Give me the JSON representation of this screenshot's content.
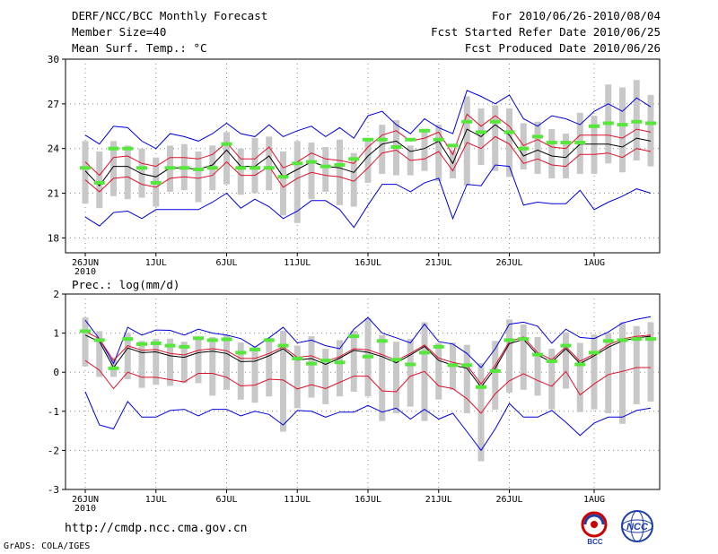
{
  "header": {
    "title": "DERF/NCC/BCC Monthly Forecast",
    "member_size": "Member Size=40",
    "variable": "Mean Surf. Temp.: °C",
    "period": "For 2010/06/26-2010/08/04",
    "refer_date": "Fcst Started Refer Date 2010/06/25",
    "produced_date": "Fcst Produced Date 2010/06/26"
  },
  "footer": {
    "url": "http://cmdp.ncc.cma.gov.cn",
    "grads": "GrADS: COLA/IGES",
    "logo_left_text": "BCC",
    "logo_right_text": "NCC"
  },
  "colors": {
    "box": "#c8c8c8",
    "mean": "#000000",
    "inner": "#e0102a",
    "outer": "#0000e0",
    "marker": "#55e83a"
  },
  "chart_data": [
    {
      "type": "line",
      "title": "Mean Surf. Temp.: °C",
      "x_ticks": [
        "26JUN",
        "1JUL",
        "6JUL",
        "11JUL",
        "16JUL",
        "21JUL",
        "26JUL",
        "1AUG"
      ],
      "x_tick_days": [
        0,
        5,
        10,
        15,
        20,
        25,
        30,
        36
      ],
      "x_year": "2010",
      "y_ticks": [
        "18",
        "21",
        "24",
        "27",
        "30"
      ],
      "ylim": [
        17,
        30
      ],
      "days": [
        0,
        1,
        2,
        3,
        4,
        5,
        6,
        7,
        8,
        9,
        10,
        11,
        12,
        13,
        14,
        15,
        16,
        17,
        18,
        19,
        20,
        21,
        22,
        23,
        24,
        25,
        26,
        27,
        28,
        29,
        30,
        31,
        32,
        33,
        34,
        35,
        36,
        37,
        38,
        39,
        40
      ],
      "series": [
        {
          "name": "mean",
          "values": [
            22.5,
            21.5,
            22.8,
            22.8,
            22.3,
            22.1,
            22.7,
            22.7,
            22.6,
            22.9,
            23.9,
            22.8,
            22.8,
            23.5,
            22.1,
            22.6,
            23.1,
            22.8,
            22.7,
            22.4,
            23.5,
            24.3,
            24.5,
            23.8,
            24.0,
            24.5,
            23.0,
            25.3,
            24.8,
            25.6,
            24.9,
            23.5,
            23.9,
            23.5,
            23.4,
            24.3,
            24.3,
            24.3,
            24.1,
            24.7,
            24.5
          ]
        },
        {
          "name": "upper_red",
          "values": [
            23.1,
            22.2,
            23.4,
            23.5,
            23.0,
            22.8,
            23.4,
            23.4,
            23.3,
            23.6,
            24.4,
            23.3,
            23.3,
            24.1,
            22.7,
            23.1,
            23.7,
            23.3,
            23.2,
            23.0,
            24.1,
            24.9,
            25.2,
            24.5,
            24.7,
            25.1,
            23.6,
            26.3,
            25.5,
            26.2,
            25.5,
            24.2,
            24.6,
            24.1,
            24.0,
            24.9,
            24.9,
            24.9,
            24.7,
            25.3,
            25.1
          ]
        },
        {
          "name": "lower_red",
          "values": [
            21.9,
            21.1,
            22.0,
            22.1,
            21.6,
            21.4,
            22.0,
            22.1,
            22.0,
            22.2,
            23.1,
            22.2,
            22.2,
            22.8,
            21.4,
            22.0,
            22.4,
            22.2,
            22.1,
            21.8,
            22.7,
            23.7,
            23.9,
            23.2,
            23.3,
            23.8,
            22.5,
            24.4,
            24.0,
            24.8,
            24.3,
            23.0,
            23.3,
            22.9,
            22.8,
            23.6,
            23.6,
            23.7,
            23.4,
            24.0,
            23.8
          ]
        },
        {
          "name": "upper_blue",
          "values": [
            24.9,
            24.3,
            25.5,
            25.4,
            24.5,
            24.0,
            25.0,
            24.8,
            24.5,
            25.0,
            25.7,
            25.0,
            24.8,
            25.6,
            24.8,
            25.2,
            25.5,
            24.8,
            25.4,
            24.7,
            26.2,
            26.5,
            25.6,
            25.0,
            26.0,
            25.4,
            25.0,
            27.9,
            27.5,
            27.0,
            27.6,
            26.0,
            25.5,
            26.2,
            26.0,
            25.6,
            26.5,
            27.0,
            26.5,
            27.4,
            26.8
          ]
        },
        {
          "name": "lower_blue",
          "values": [
            19.4,
            18.8,
            19.7,
            19.8,
            19.3,
            19.9,
            19.9,
            19.9,
            19.9,
            20.4,
            21.0,
            20.0,
            20.6,
            20.1,
            19.3,
            19.8,
            20.5,
            20.5,
            19.9,
            18.7,
            20.2,
            21.6,
            21.6,
            21.1,
            21.7,
            22.0,
            19.3,
            21.6,
            21.5,
            22.9,
            22.8,
            20.2,
            20.4,
            20.3,
            20.3,
            21.2,
            19.9,
            20.4,
            20.8,
            21.3,
            21.0
          ]
        },
        {
          "name": "box_high",
          "values": [
            24.5,
            23.8,
            24.5,
            24.2,
            24.0,
            23.4,
            24.2,
            24.3,
            23.8,
            24.2,
            25.1,
            24.0,
            24.7,
            24.8,
            23.8,
            24.5,
            24.4,
            24.1,
            24.6,
            23.7,
            24.7,
            25.6,
            25.9,
            24.2,
            25.3,
            25.6,
            23.9,
            27.5,
            26.7,
            26.9,
            26.7,
            25.7,
            25.8,
            25.3,
            25.0,
            26.4,
            26.2,
            28.3,
            28.1,
            28.6,
            27.6
          ]
        },
        {
          "name": "box_low",
          "values": [
            20.3,
            20.0,
            20.8,
            20.6,
            20.7,
            20.1,
            21.1,
            21.2,
            20.4,
            21.2,
            21.6,
            20.9,
            21.0,
            21.2,
            19.5,
            19.0,
            20.6,
            21.1,
            20.2,
            20.1,
            21.7,
            22.3,
            22.2,
            22.2,
            22.5,
            21.8,
            22.0,
            21.5,
            22.9,
            22.5,
            22.1,
            22.6,
            22.3,
            22.0,
            22.0,
            22.3,
            22.3,
            23.0,
            22.4,
            23.2,
            22.8
          ]
        },
        {
          "name": "green_marker",
          "values": [
            22.7,
            21.7,
            24.0,
            24.0,
            22.7,
            21.7,
            22.7,
            22.7,
            22.6,
            22.7,
            24.3,
            22.7,
            22.7,
            22.7,
            22.1,
            23.0,
            23.1,
            22.8,
            22.9,
            23.3,
            24.6,
            24.6,
            24.1,
            24.6,
            25.2,
            24.6,
            24.2,
            25.8,
            25.1,
            25.8,
            25.1,
            24.0,
            24.8,
            24.4,
            24.4,
            24.4,
            25.5,
            25.7,
            25.6,
            25.8,
            25.7
          ]
        }
      ]
    },
    {
      "type": "line",
      "title": "Prec.: log(mm/d)",
      "x_ticks": [
        "26JUN",
        "1JUL",
        "6JUL",
        "11JUL",
        "16JUL",
        "21JUL",
        "26JUL",
        "1AUG"
      ],
      "x_tick_days": [
        0,
        5,
        10,
        15,
        20,
        25,
        30,
        36
      ],
      "x_year": "2010",
      "y_ticks": [
        "-3",
        "-2",
        "-1",
        "0",
        "1",
        "2"
      ],
      "ylim": [
        -3,
        2
      ],
      "days": [
        0,
        1,
        2,
        3,
        4,
        5,
        6,
        7,
        8,
        9,
        10,
        11,
        12,
        13,
        14,
        15,
        16,
        17,
        18,
        19,
        20,
        21,
        22,
        23,
        24,
        25,
        26,
        27,
        28,
        29,
        30,
        31,
        32,
        33,
        34,
        35,
        36,
        37,
        38,
        39,
        40
      ],
      "series": [
        {
          "name": "mean",
          "values": [
            0.95,
            0.78,
            0.12,
            0.62,
            0.5,
            0.52,
            0.42,
            0.38,
            0.5,
            0.54,
            0.48,
            0.27,
            0.28,
            0.42,
            0.6,
            0.31,
            0.35,
            0.2,
            0.36,
            0.56,
            0.51,
            0.4,
            0.24,
            0.44,
            0.66,
            0.3,
            0.18,
            0.1,
            -0.38,
            0.1,
            0.73,
            0.84,
            0.44,
            0.26,
            0.6,
            0.22,
            0.42,
            0.64,
            0.8,
            0.88,
            0.92
          ]
        },
        {
          "name": "upper_red",
          "values": [
            1.05,
            0.85,
            0.3,
            0.68,
            0.56,
            0.58,
            0.48,
            0.44,
            0.56,
            0.6,
            0.55,
            0.35,
            0.35,
            0.48,
            0.65,
            0.38,
            0.42,
            0.27,
            0.4,
            0.6,
            0.57,
            0.45,
            0.3,
            0.48,
            0.7,
            0.36,
            0.25,
            0.18,
            -0.3,
            0.18,
            0.78,
            0.9,
            0.5,
            0.32,
            0.65,
            0.28,
            0.46,
            0.7,
            0.85,
            0.92,
            0.95
          ]
        },
        {
          "name": "lower_red",
          "values": [
            0.3,
            0.05,
            -0.42,
            0.0,
            -0.13,
            -0.13,
            -0.19,
            -0.25,
            -0.03,
            -0.03,
            -0.13,
            -0.35,
            -0.33,
            -0.18,
            -0.2,
            -0.43,
            -0.32,
            -0.42,
            -0.26,
            -0.1,
            -0.1,
            -0.48,
            -0.5,
            -0.1,
            0.02,
            -0.35,
            -0.42,
            -0.68,
            -1.05,
            -0.55,
            -0.22,
            -0.04,
            -0.21,
            -0.36,
            0.02,
            -0.58,
            -0.3,
            -0.06,
            0.02,
            0.12,
            0.12
          ]
        },
        {
          "name": "upper_blue",
          "values": [
            1.33,
            0.85,
            0.22,
            1.15,
            0.95,
            1.08,
            1.07,
            0.95,
            1.1,
            1.0,
            0.95,
            0.86,
            0.64,
            0.88,
            1.15,
            0.75,
            0.82,
            0.68,
            0.6,
            1.1,
            1.4,
            1.0,
            0.88,
            0.75,
            1.23,
            0.78,
            0.72,
            0.48,
            0.12,
            0.6,
            1.23,
            1.28,
            1.18,
            0.74,
            1.1,
            0.89,
            0.86,
            1.03,
            1.26,
            1.35,
            1.42
          ]
        },
        {
          "name": "lower_blue",
          "values": [
            -0.5,
            -1.35,
            -1.45,
            -0.75,
            -1.15,
            -1.15,
            -0.98,
            -0.95,
            -1.12,
            -0.95,
            -0.95,
            -1.12,
            -1.0,
            -1.08,
            -1.35,
            -0.98,
            -1.0,
            -1.15,
            -1.02,
            -1.02,
            -0.85,
            -1.02,
            -0.92,
            -1.2,
            -0.95,
            -1.2,
            -1.05,
            -1.52,
            -2.0,
            -1.45,
            -0.8,
            -1.15,
            -1.15,
            -0.98,
            -1.28,
            -1.62,
            -1.3,
            -1.15,
            -1.15,
            -0.98,
            -0.92
          ]
        },
        {
          "name": "box_high",
          "values": [
            1.4,
            1.05,
            0.38,
            1.0,
            0.8,
            0.85,
            0.86,
            0.78,
            0.9,
            0.9,
            0.95,
            0.76,
            0.66,
            0.88,
            1.06,
            0.68,
            0.92,
            0.6,
            0.82,
            1.06,
            1.38,
            0.95,
            0.78,
            0.85,
            1.28,
            0.74,
            0.76,
            0.7,
            0.23,
            0.8,
            1.35,
            1.22,
            0.9,
            0.6,
            1.02,
            0.75,
            0.96,
            1.0,
            1.28,
            1.18,
            1.28
          ]
        },
        {
          "name": "box_low",
          "values": [
            0.15,
            -0.12,
            -0.12,
            -0.18,
            -0.4,
            -0.32,
            -0.35,
            -0.28,
            -0.28,
            -0.6,
            -0.45,
            -0.7,
            -0.78,
            -0.62,
            -1.52,
            -0.92,
            -0.65,
            -0.82,
            -0.62,
            -0.5,
            -0.62,
            -1.25,
            -1.05,
            -0.88,
            -1.25,
            -0.7,
            -0.45,
            -1.05,
            -2.28,
            -0.96,
            -0.52,
            -0.45,
            -0.6,
            -0.95,
            -0.42,
            -1.02,
            -0.95,
            -1.05,
            -1.32,
            -0.82,
            -0.75
          ]
        },
        {
          "name": "green_marker",
          "values": [
            1.05,
            0.82,
            0.1,
            0.85,
            0.72,
            0.74,
            0.68,
            0.65,
            0.87,
            0.82,
            0.84,
            0.5,
            0.58,
            0.82,
            0.68,
            0.35,
            0.22,
            0.3,
            0.25,
            0.92,
            0.4,
            0.8,
            0.32,
            0.2,
            0.5,
            0.65,
            0.18,
            0.18,
            -0.38,
            0.03,
            0.82,
            0.85,
            0.45,
            0.28,
            0.68,
            0.2,
            0.5,
            0.8,
            0.82,
            0.85,
            0.85
          ]
        }
      ]
    }
  ]
}
